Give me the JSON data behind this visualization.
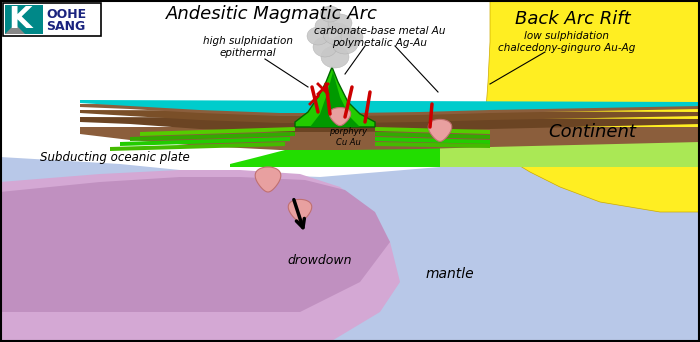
{
  "labels": {
    "andesitic": "Andesitic Magmatic Arc",
    "back_arc": "Back Arc Rift",
    "continent": "Continent",
    "subducting": "Subducting oceanic plate",
    "mantle": "mantle",
    "drowdown": "drowdown",
    "high_sulph": "high sulphidation\nepithermal",
    "carbonate": "carbonate-base metal Au\npolymetalic Ag-Au",
    "low_sulph": "low sulphidation\nchalcedony-ginguro Au-Ag",
    "porphyry": "porphyry\nCu Au"
  },
  "colors": {
    "ocean_plate": "#d4a8d4",
    "mantle_blue": "#b8c8e8",
    "continent_yellow": "#ffee22",
    "brown1": "#8B5E3C",
    "brown2": "#6B4423",
    "brown_stripe": "#5a3a1a",
    "green_dark": "#006600",
    "green_bright": "#00cc00",
    "green_light": "#88dd44",
    "green_med": "#44aa00",
    "cyan_layer": "#00cccc",
    "white_bg": "#ffffff",
    "smoke_gray": "#bbbbbb",
    "red_vein": "#cc0000",
    "pink_blob": "#e8a0a0",
    "pink_edge": "#c07070",
    "logo_teal": "#009999",
    "logo_navy": "#1a237e",
    "border": "#000000"
  }
}
